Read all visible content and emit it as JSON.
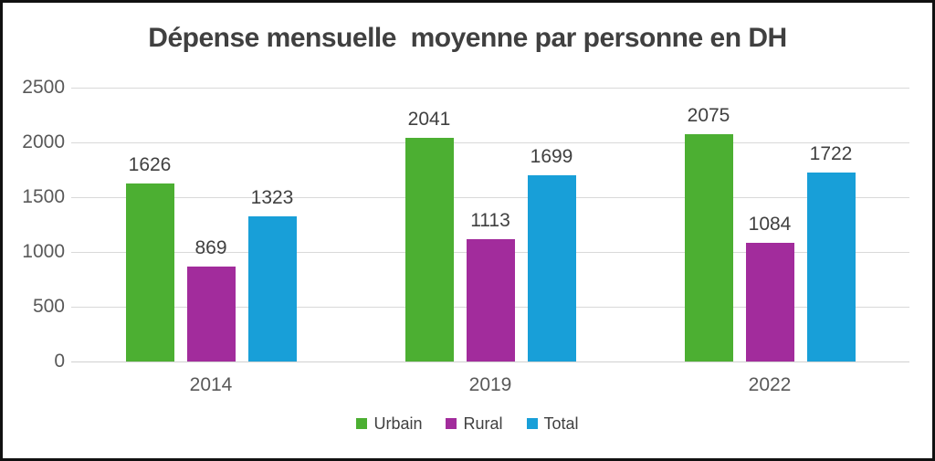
{
  "title": "Dépense mensuelle  moyenne par personne en DH",
  "frame": {
    "border_color": "#111111",
    "background_color": "#ffffff"
  },
  "text_colors": {
    "title": "#404040",
    "data_label": "#404040",
    "axis_label": "#595959",
    "legend_label": "#404040",
    "gridline": "#d9d9d9"
  },
  "chart_data": {
    "type": "bar",
    "title": "Dépense mensuelle  moyenne par personne en DH",
    "categories": [
      "2014",
      "2019",
      "2022"
    ],
    "series": [
      {
        "name": "Urbain",
        "color": "#4CAF32",
        "values": [
          1626,
          2041,
          2075
        ]
      },
      {
        "name": "Rural",
        "color": "#A22C9C",
        "values": [
          869,
          1113,
          1084
        ]
      },
      {
        "name": "Total",
        "color": "#189FD8",
        "values": [
          1323,
          1699,
          1722
        ]
      }
    ],
    "xlabel": "",
    "ylabel": "",
    "ylim": [
      0,
      2500
    ],
    "yticks": [
      0,
      500,
      1000,
      1500,
      2000,
      2500
    ],
    "grid": true,
    "data_labels": true,
    "legend_position": "bottom"
  }
}
